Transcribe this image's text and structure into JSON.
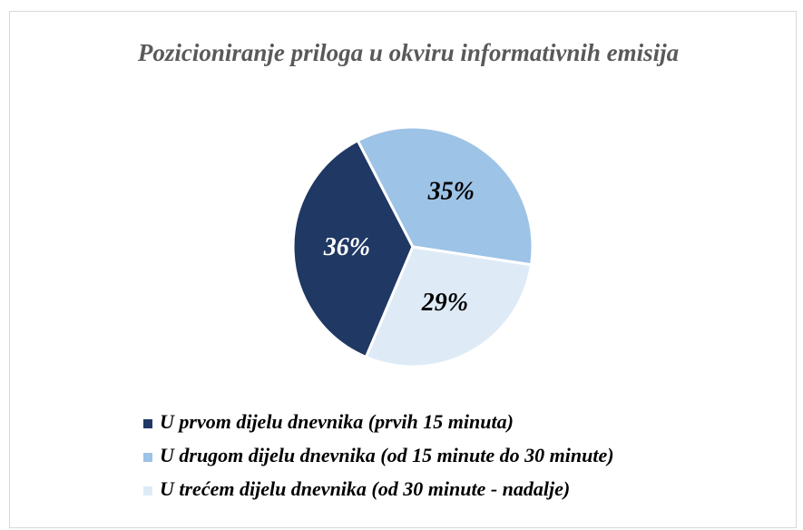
{
  "chart_data": {
    "type": "pie",
    "title": "Pozicioniranje priloga u okviru informativnih emisija",
    "categories": [
      "U prvom dijelu dnevnika (prvih 15 minuta)",
      "U drugom dijelu dnevnika (od 15 minute do 30 minute)",
      "U trećem dijelu dnevnika (od 30 minute - nadalje)"
    ],
    "values": [
      36,
      35,
      29
    ],
    "value_labels": [
      "36%",
      "35%",
      "29%"
    ],
    "colors": [
      "#203864",
      "#9dc3e6",
      "#deebf7"
    ],
    "label_colors": [
      "#ffffff",
      "#000000",
      "#000000"
    ],
    "legend": "bottom"
  }
}
